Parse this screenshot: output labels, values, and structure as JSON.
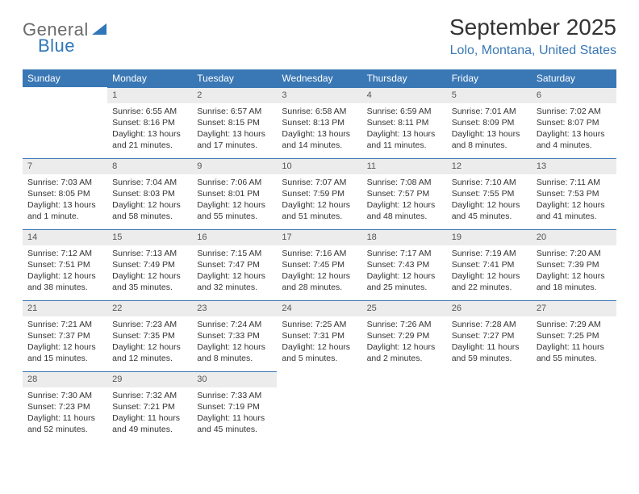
{
  "logo": {
    "word1": "General",
    "word2": "Blue"
  },
  "title": "September 2025",
  "subtitle": "Lolo, Montana, United States",
  "colors": {
    "header_bg": "#3a78b5",
    "header_text": "#ffffff",
    "daynum_bg": "#ececec",
    "border": "#3a78b5",
    "logo_gray": "#6b6b6b",
    "logo_blue": "#2f77b8"
  },
  "weekdays": [
    "Sunday",
    "Monday",
    "Tuesday",
    "Wednesday",
    "Thursday",
    "Friday",
    "Saturday"
  ],
  "weeks": [
    [
      {
        "n": "",
        "sr": "",
        "ss": "",
        "dl": ""
      },
      {
        "n": "1",
        "sr": "Sunrise: 6:55 AM",
        "ss": "Sunset: 8:16 PM",
        "dl": "Daylight: 13 hours and 21 minutes."
      },
      {
        "n": "2",
        "sr": "Sunrise: 6:57 AM",
        "ss": "Sunset: 8:15 PM",
        "dl": "Daylight: 13 hours and 17 minutes."
      },
      {
        "n": "3",
        "sr": "Sunrise: 6:58 AM",
        "ss": "Sunset: 8:13 PM",
        "dl": "Daylight: 13 hours and 14 minutes."
      },
      {
        "n": "4",
        "sr": "Sunrise: 6:59 AM",
        "ss": "Sunset: 8:11 PM",
        "dl": "Daylight: 13 hours and 11 minutes."
      },
      {
        "n": "5",
        "sr": "Sunrise: 7:01 AM",
        "ss": "Sunset: 8:09 PM",
        "dl": "Daylight: 13 hours and 8 minutes."
      },
      {
        "n": "6",
        "sr": "Sunrise: 7:02 AM",
        "ss": "Sunset: 8:07 PM",
        "dl": "Daylight: 13 hours and 4 minutes."
      }
    ],
    [
      {
        "n": "7",
        "sr": "Sunrise: 7:03 AM",
        "ss": "Sunset: 8:05 PM",
        "dl": "Daylight: 13 hours and 1 minute."
      },
      {
        "n": "8",
        "sr": "Sunrise: 7:04 AM",
        "ss": "Sunset: 8:03 PM",
        "dl": "Daylight: 12 hours and 58 minutes."
      },
      {
        "n": "9",
        "sr": "Sunrise: 7:06 AM",
        "ss": "Sunset: 8:01 PM",
        "dl": "Daylight: 12 hours and 55 minutes."
      },
      {
        "n": "10",
        "sr": "Sunrise: 7:07 AM",
        "ss": "Sunset: 7:59 PM",
        "dl": "Daylight: 12 hours and 51 minutes."
      },
      {
        "n": "11",
        "sr": "Sunrise: 7:08 AM",
        "ss": "Sunset: 7:57 PM",
        "dl": "Daylight: 12 hours and 48 minutes."
      },
      {
        "n": "12",
        "sr": "Sunrise: 7:10 AM",
        "ss": "Sunset: 7:55 PM",
        "dl": "Daylight: 12 hours and 45 minutes."
      },
      {
        "n": "13",
        "sr": "Sunrise: 7:11 AM",
        "ss": "Sunset: 7:53 PM",
        "dl": "Daylight: 12 hours and 41 minutes."
      }
    ],
    [
      {
        "n": "14",
        "sr": "Sunrise: 7:12 AM",
        "ss": "Sunset: 7:51 PM",
        "dl": "Daylight: 12 hours and 38 minutes."
      },
      {
        "n": "15",
        "sr": "Sunrise: 7:13 AM",
        "ss": "Sunset: 7:49 PM",
        "dl": "Daylight: 12 hours and 35 minutes."
      },
      {
        "n": "16",
        "sr": "Sunrise: 7:15 AM",
        "ss": "Sunset: 7:47 PM",
        "dl": "Daylight: 12 hours and 32 minutes."
      },
      {
        "n": "17",
        "sr": "Sunrise: 7:16 AM",
        "ss": "Sunset: 7:45 PM",
        "dl": "Daylight: 12 hours and 28 minutes."
      },
      {
        "n": "18",
        "sr": "Sunrise: 7:17 AM",
        "ss": "Sunset: 7:43 PM",
        "dl": "Daylight: 12 hours and 25 minutes."
      },
      {
        "n": "19",
        "sr": "Sunrise: 7:19 AM",
        "ss": "Sunset: 7:41 PM",
        "dl": "Daylight: 12 hours and 22 minutes."
      },
      {
        "n": "20",
        "sr": "Sunrise: 7:20 AM",
        "ss": "Sunset: 7:39 PM",
        "dl": "Daylight: 12 hours and 18 minutes."
      }
    ],
    [
      {
        "n": "21",
        "sr": "Sunrise: 7:21 AM",
        "ss": "Sunset: 7:37 PM",
        "dl": "Daylight: 12 hours and 15 minutes."
      },
      {
        "n": "22",
        "sr": "Sunrise: 7:23 AM",
        "ss": "Sunset: 7:35 PM",
        "dl": "Daylight: 12 hours and 12 minutes."
      },
      {
        "n": "23",
        "sr": "Sunrise: 7:24 AM",
        "ss": "Sunset: 7:33 PM",
        "dl": "Daylight: 12 hours and 8 minutes."
      },
      {
        "n": "24",
        "sr": "Sunrise: 7:25 AM",
        "ss": "Sunset: 7:31 PM",
        "dl": "Daylight: 12 hours and 5 minutes."
      },
      {
        "n": "25",
        "sr": "Sunrise: 7:26 AM",
        "ss": "Sunset: 7:29 PM",
        "dl": "Daylight: 12 hours and 2 minutes."
      },
      {
        "n": "26",
        "sr": "Sunrise: 7:28 AM",
        "ss": "Sunset: 7:27 PM",
        "dl": "Daylight: 11 hours and 59 minutes."
      },
      {
        "n": "27",
        "sr": "Sunrise: 7:29 AM",
        "ss": "Sunset: 7:25 PM",
        "dl": "Daylight: 11 hours and 55 minutes."
      }
    ],
    [
      {
        "n": "28",
        "sr": "Sunrise: 7:30 AM",
        "ss": "Sunset: 7:23 PM",
        "dl": "Daylight: 11 hours and 52 minutes."
      },
      {
        "n": "29",
        "sr": "Sunrise: 7:32 AM",
        "ss": "Sunset: 7:21 PM",
        "dl": "Daylight: 11 hours and 49 minutes."
      },
      {
        "n": "30",
        "sr": "Sunrise: 7:33 AM",
        "ss": "Sunset: 7:19 PM",
        "dl": "Daylight: 11 hours and 45 minutes."
      },
      {
        "n": "",
        "sr": "",
        "ss": "",
        "dl": ""
      },
      {
        "n": "",
        "sr": "",
        "ss": "",
        "dl": ""
      },
      {
        "n": "",
        "sr": "",
        "ss": "",
        "dl": ""
      },
      {
        "n": "",
        "sr": "",
        "ss": "",
        "dl": ""
      }
    ]
  ]
}
